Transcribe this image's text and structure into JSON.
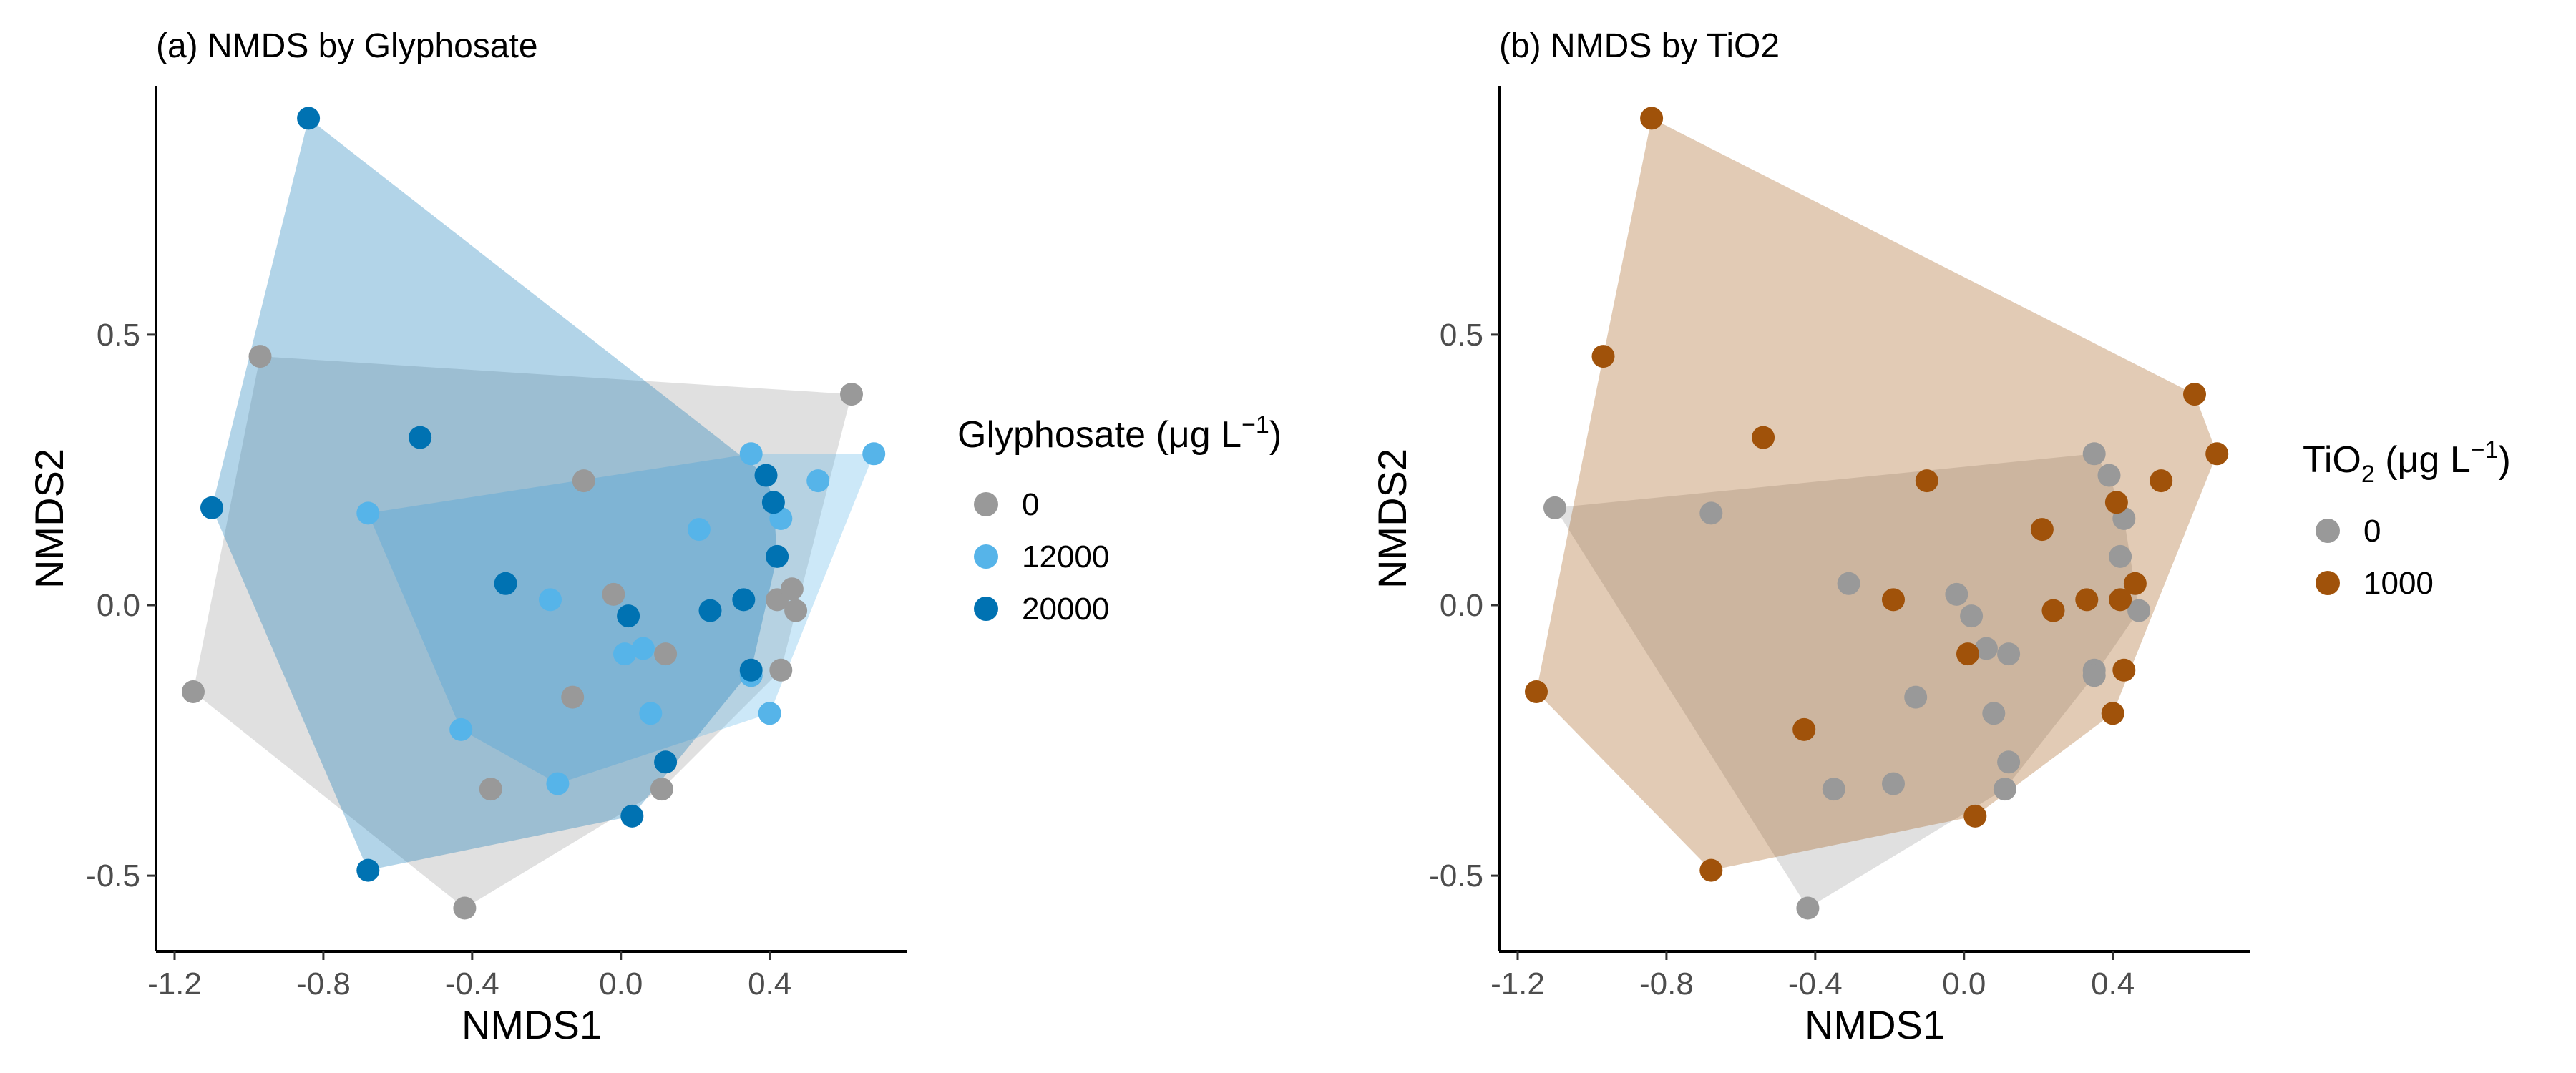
{
  "figure": {
    "colors": {
      "c0": "#999999",
      "c12000": "#56B4E9",
      "c20000": "#0072B2",
      "tio_0": "#999999",
      "tio_1000": "#A0520A"
    }
  },
  "chart_data": [
    {
      "type": "scatter",
      "title": "(a) NMDS by Glyphosate",
      "xlabel": "NMDS1",
      "ylabel": "NMDS2",
      "xlim": [
        -1.25,
        0.77
      ],
      "ylim": [
        -0.64,
        0.96
      ],
      "xticks": [
        -1.2,
        -0.8,
        -0.4,
        0.0,
        0.4
      ],
      "xtick_labels": [
        "-1.2",
        "-0.8",
        "-0.4",
        "0.0",
        "0.4"
      ],
      "yticks": [
        -0.5,
        0.0,
        0.5
      ],
      "ytick_labels": [
        "-0.5",
        "0.0",
        "0.5"
      ],
      "grid": false,
      "legend": {
        "title": "Glyphosate (μg L",
        "title_sup": "−1",
        "title_end": ")",
        "position": "right",
        "labels": [
          "0",
          "12000",
          "20000"
        ]
      },
      "hulls": true,
      "series": [
        {
          "name": "0",
          "color": "#999999",
          "points": [
            [
              -0.97,
              0.46
            ],
            [
              -1.15,
              -0.16
            ],
            [
              -0.42,
              -0.56
            ],
            [
              0.62,
              0.39
            ],
            [
              -0.1,
              0.23
            ],
            [
              -0.02,
              0.02
            ],
            [
              0.12,
              -0.09
            ],
            [
              -0.13,
              -0.17
            ],
            [
              -0.35,
              -0.34
            ],
            [
              0.11,
              -0.34
            ],
            [
              0.43,
              -0.12
            ],
            [
              0.42,
              0.01
            ],
            [
              0.46,
              0.03
            ],
            [
              0.47,
              -0.01
            ],
            [
              0.35,
              -0.13
            ]
          ]
        },
        {
          "name": "12000",
          "color": "#56B4E9",
          "points": [
            [
              -0.68,
              0.17
            ],
            [
              -0.43,
              -0.23
            ],
            [
              -0.19,
              0.01
            ],
            [
              -0.17,
              -0.33
            ],
            [
              0.01,
              -0.09
            ],
            [
              0.06,
              -0.08
            ],
            [
              0.08,
              -0.2
            ],
            [
              0.21,
              0.14
            ],
            [
              0.35,
              0.28
            ],
            [
              0.4,
              -0.2
            ],
            [
              0.43,
              0.16
            ],
            [
              0.53,
              0.23
            ],
            [
              0.68,
              0.28
            ],
            [
              0.35,
              -0.13
            ]
          ]
        },
        {
          "name": "20000",
          "color": "#0072B2",
          "points": [
            [
              -0.84,
              0.9
            ],
            [
              -1.1,
              0.18
            ],
            [
              -0.68,
              -0.49
            ],
            [
              -0.54,
              0.31
            ],
            [
              -0.31,
              0.04
            ],
            [
              0.02,
              -0.02
            ],
            [
              0.03,
              -0.39
            ],
            [
              0.12,
              -0.29
            ],
            [
              0.24,
              -0.01
            ],
            [
              0.33,
              0.01
            ],
            [
              0.35,
              -0.12
            ],
            [
              0.39,
              0.24
            ],
            [
              0.41,
              0.19
            ],
            [
              0.42,
              0.09
            ]
          ]
        }
      ]
    },
    {
      "type": "scatter",
      "title": "(b) NMDS by TiO2",
      "xlabel": "NMDS1",
      "ylabel": "NMDS2",
      "xlim": [
        -1.25,
        0.77
      ],
      "ylim": [
        -0.64,
        0.96
      ],
      "xticks": [
        -1.2,
        -0.8,
        -0.4,
        0.0,
        0.4
      ],
      "xtick_labels": [
        "-1.2",
        "-0.8",
        "-0.4",
        "0.0",
        "0.4"
      ],
      "yticks": [
        -0.5,
        0.0,
        0.5
      ],
      "ytick_labels": [
        "-0.5",
        "0.0",
        "0.5"
      ],
      "grid": false,
      "legend": {
        "title_pre": "TiO",
        "title_sub": "2",
        "title": " (μg L",
        "title_sup": "−1",
        "title_end": ")",
        "position": "right",
        "labels": [
          "0",
          "1000"
        ]
      },
      "hulls": true,
      "series": [
        {
          "name": "0",
          "color": "#999999",
          "points": [
            [
              -1.1,
              0.18
            ],
            [
              -0.68,
              0.17
            ],
            [
              -0.42,
              -0.56
            ],
            [
              -0.31,
              0.04
            ],
            [
              -0.35,
              -0.34
            ],
            [
              -0.19,
              -0.33
            ],
            [
              -0.13,
              -0.17
            ],
            [
              -0.02,
              0.02
            ],
            [
              0.02,
              -0.02
            ],
            [
              0.06,
              -0.08
            ],
            [
              0.12,
              -0.09
            ],
            [
              0.08,
              -0.2
            ],
            [
              0.12,
              -0.29
            ],
            [
              0.11,
              -0.34
            ],
            [
              0.35,
              0.28
            ],
            [
              0.39,
              0.24
            ],
            [
              0.43,
              0.16
            ],
            [
              0.42,
              0.09
            ],
            [
              0.47,
              -0.01
            ],
            [
              0.35,
              -0.12
            ],
            [
              0.35,
              -0.13
            ]
          ]
        },
        {
          "name": "1000",
          "color": "#A0520A",
          "points": [
            [
              -0.84,
              0.9
            ],
            [
              -0.97,
              0.46
            ],
            [
              -0.54,
              0.31
            ],
            [
              -1.15,
              -0.16
            ],
            [
              -0.68,
              -0.49
            ],
            [
              -0.43,
              -0.23
            ],
            [
              -0.19,
              0.01
            ],
            [
              -0.1,
              0.23
            ],
            [
              0.01,
              -0.09
            ],
            [
              0.03,
              -0.39
            ],
            [
              0.21,
              0.14
            ],
            [
              0.24,
              -0.01
            ],
            [
              0.33,
              0.01
            ],
            [
              0.41,
              0.19
            ],
            [
              0.42,
              0.01
            ],
            [
              0.46,
              0.04
            ],
            [
              0.43,
              -0.12
            ],
            [
              0.4,
              -0.2
            ],
            [
              0.53,
              0.23
            ],
            [
              0.62,
              0.39
            ],
            [
              0.68,
              0.28
            ]
          ]
        }
      ]
    }
  ]
}
